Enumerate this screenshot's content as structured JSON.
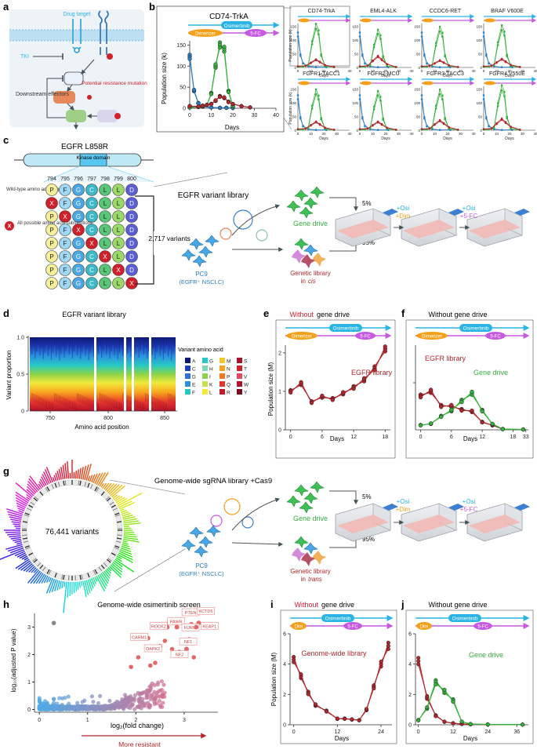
{
  "panel_letters": [
    "a",
    "b",
    "c",
    "d",
    "e",
    "f",
    "g",
    "h",
    "i",
    "j"
  ],
  "colors": {
    "osimertinib": "#2ab4e6",
    "dimerizer": "#f4a11a",
    "fc5": "#c659e0",
    "green": "#34b13c",
    "red": "#b3262c",
    "blue": "#2a7fc4",
    "red_text": "#d0202a",
    "membrane": "#bcdff2",
    "kinase": "#58c6ee"
  },
  "panel_a": {
    "drug_target": "Drug target",
    "tki": "TKI",
    "downstream": "Downstream effectors",
    "resistance": "Potential resistance mutation"
  },
  "panel_b": {
    "main_title": "CD74-TrkA",
    "osimertinib": "Osimertinib",
    "dimerizer": "Dimerizer",
    "fc": "5-FC",
    "ylabel": "Population size (k)",
    "xlabel": "Days",
    "small_titles": [
      "CD74-TrkA",
      "EML4-ALK",
      "CCDC6-RET",
      "BRAF V600E",
      "FGFR1-TACC1",
      "FGFR2-MCU",
      "FGFR3-TACC3",
      "FGFR4 V550E"
    ],
    "small_ylabel": "Population size (k)",
    "small_xlabel": "Days"
  },
  "panel_c": {
    "protein": "EGFR L858R",
    "kinase": "Kinase domain",
    "positions": [
      "794",
      "795",
      "796",
      "797",
      "798",
      "799",
      "800"
    ],
    "wt_label": "Wild-type amino acid sequence",
    "wt_seq": [
      "P",
      "F",
      "G",
      "C",
      "L",
      "L",
      "D"
    ],
    "substitution_label": "All possible amino acid substitutions",
    "sub_marker": "X",
    "count": "2,717 variants",
    "library": "EGFR variant library",
    "cells": "PC9",
    "cells_sub": "(EGFR⁺ NSCLC)",
    "gene_drive": "Gene drive",
    "genetic_library": "Genetic library",
    "in": "in",
    "cis": "cis",
    "pct_top": "5%",
    "pct_bottom": "95%",
    "add1a": "+Osi",
    "add1b": "+Dim",
    "add2a": "+Osi",
    "add2b": "+5-FC"
  },
  "panel_d": {
    "title": "EGFR variant library",
    "ylabel": "Variant proportion",
    "xlabel": "Amino acid position",
    "legend_title": "Variant amino acid",
    "amino_acids": [
      "A",
      "C",
      "D",
      "E",
      "F",
      "G",
      "H",
      "I",
      "K",
      "L",
      "M",
      "N",
      "P",
      "Q",
      "R",
      "S",
      "T",
      "V",
      "W",
      "Y"
    ],
    "xticks": [
      "750",
      "800",
      "850"
    ],
    "yticks": [
      "0",
      "0.5",
      "1.0"
    ]
  },
  "panel_e": {
    "title_red": "Without",
    "title_rest": "gene drive",
    "osimertinib": "Osimertinib",
    "dimerizer": "Dimerizer",
    "fc": "5-FC",
    "ylabel": "Population size (M)",
    "xlabel": "Days",
    "series_label": "EGFR library",
    "xticks": [
      "0",
      "6",
      "12",
      "18"
    ],
    "yticks": [
      "0",
      "1",
      "2"
    ]
  },
  "panel_f": {
    "title": "Without gene drive",
    "osimertinib": "Osimertinib",
    "dimerizer": "Dimerizer",
    "fc": "5-FC",
    "xlabel": "Days",
    "red_label": "EGFR library",
    "green_label": "Gene drive",
    "xticks": [
      "0",
      "6",
      "12",
      "18",
      "33"
    ]
  },
  "panel_g": {
    "count": "76,441 variants",
    "library": "Genome-wide sgRNA library +Cas9",
    "cells": "PC9",
    "cells_sub": "(EGFR⁺ NSCLC)",
    "gene_drive": "Gene drive",
    "genetic_library": "Genetic library",
    "in": "in",
    "trans": "trans",
    "pct_top": "5%",
    "pct_bottom": "95%",
    "add1a": "+Osi",
    "add1b": "+Dim",
    "add2a": "+Osi",
    "add2b": "+5-FC"
  },
  "panel_h": {
    "title": "Genome-wide osimertinib screen",
    "ylabel": "log₁₀(adjusted P value)",
    "xlabel": "log₂(fold change)",
    "arrow_label": "More resistant",
    "genes": [
      "PTEN",
      "KCTD5",
      "PAWR",
      "FURIN",
      "KEAP1",
      "ROCK2",
      "CARM1",
      "NF1",
      "DAPK2",
      "NF2"
    ],
    "xticks": [
      "0",
      "1",
      "2",
      "3"
    ],
    "yticks": [
      "0",
      "1",
      "2",
      "3"
    ]
  },
  "panel_i": {
    "title_red": "Without",
    "title_rest": "gene drive",
    "osimertinib": "Osimertinib",
    "dim": "Dim",
    "fc": "5-FC",
    "ylabel": "Population size (M)",
    "xlabel": "Days",
    "series_label": "Genome-wide library",
    "xticks": [
      "0",
      "12",
      "24"
    ],
    "yticks": [
      "0",
      "2",
      "4",
      "6"
    ]
  },
  "panel_j": {
    "title": "Without gene drive",
    "osimertinib": "Osimertinib",
    "dim": "Dim",
    "fc": "5-FC",
    "xlabel": "Days",
    "green_label": "Gene drive",
    "xticks": [
      "0",
      "12",
      "24",
      "36"
    ],
    "yticks": [
      "0",
      "2",
      "4",
      "6"
    ]
  },
  "chart_data": [
    {
      "id": "b-main",
      "type": "line",
      "title": "CD74-TrkA",
      "xlabel": "Days",
      "ylabel": "Population size (k)",
      "xlim": [
        0,
        40
      ],
      "ylim": [
        0,
        160
      ],
      "xticks": [
        0,
        10,
        20,
        30,
        40
      ],
      "yticks": [
        0,
        50,
        100,
        150
      ],
      "series": [
        {
          "name": "blue",
          "x": [
            0,
            2,
            4,
            6,
            10,
            14,
            17,
            20
          ],
          "values": [
            122,
            42,
            12,
            4,
            2,
            1,
            1,
            1
          ]
        },
        {
          "name": "green",
          "x": [
            0,
            4,
            6,
            8,
            10,
            12,
            14,
            16,
            18,
            20
          ],
          "values": [
            2,
            3,
            5,
            8,
            35,
            100,
            150,
            140,
            40,
            5
          ]
        },
        {
          "name": "red",
          "x": [
            0,
            4,
            6,
            8,
            10,
            12,
            14,
            16,
            18,
            20,
            24,
            28
          ],
          "values": [
            5,
            4,
            6,
            8,
            10,
            18,
            28,
            25,
            15,
            10,
            5,
            2
          ]
        }
      ]
    },
    {
      "id": "b-small",
      "type": "line",
      "xlim": [
        0,
        40
      ],
      "ylim": [
        0,
        160
      ],
      "panels": [
        {
          "title": "CD74-TrkA",
          "green_peak": 150,
          "red_peak": 28
        },
        {
          "title": "EML4-ALK",
          "green_peak": 130,
          "red_peak": 40
        },
        {
          "title": "CCDC6-RET",
          "green_peak": 140,
          "red_peak": 25
        },
        {
          "title": "BRAF V600E",
          "green_peak": 145,
          "red_peak": 30
        },
        {
          "title": "FGFR1-TACC1",
          "green_peak": 140,
          "red_peak": 30
        },
        {
          "title": "FGFR2-MCU",
          "green_peak": 135,
          "red_peak": 30
        },
        {
          "title": "FGFR3-TACC3",
          "green_peak": 140,
          "red_peak": 35
        },
        {
          "title": "FGFR4 V550E",
          "green_peak": 155,
          "red_peak": 40
        }
      ]
    },
    {
      "id": "e",
      "type": "line",
      "xlabel": "Days",
      "ylabel": "Population size (M)",
      "xlim": [
        -1,
        19
      ],
      "ylim": [
        0,
        2.2
      ],
      "series": [
        {
          "name": "EGFR library",
          "x": [
            0,
            2,
            4,
            6,
            8,
            10,
            12,
            14,
            16,
            18
          ],
          "values": [
            1.0,
            1.2,
            0.72,
            0.86,
            0.8,
            0.95,
            1.1,
            1.3,
            1.6,
            2.1
          ]
        }
      ]
    },
    {
      "id": "f",
      "type": "line",
      "xlabel": "Days",
      "xlim": [
        -1,
        21
      ],
      "ylim": [
        0,
        2.2
      ],
      "series": [
        {
          "name": "EGFR library",
          "x": [
            0,
            2,
            4,
            6,
            8,
            10,
            12,
            14,
            16
          ],
          "values": [
            0.88,
            1.0,
            0.62,
            0.62,
            0.52,
            0.48,
            0.2,
            0.12,
            0.02
          ]
        },
        {
          "name": "Gene drive",
          "x": [
            0,
            2,
            4,
            6,
            8,
            10,
            12,
            14,
            16,
            20
          ],
          "values": [
            0.12,
            0.16,
            0.35,
            0.5,
            0.75,
            0.95,
            0.5,
            0.15,
            0.02,
            0.01
          ]
        }
      ]
    },
    {
      "id": "h",
      "type": "scatter",
      "title": "Genome-wide osimertinib screen",
      "xlabel": "log₂(fold change)",
      "ylabel": "log₁₀(adjusted P value)",
      "xlim": [
        -0.1,
        3.7
      ],
      "ylim": [
        -0.1,
        3.5
      ],
      "labeled_points": [
        {
          "gene": "PTEN",
          "x": 3.15,
          "y": 3.1
        },
        {
          "gene": "KCTD5",
          "x": 3.3,
          "y": 3.15
        },
        {
          "gene": "PAWR",
          "x": 2.85,
          "y": 3.0
        },
        {
          "gene": "FURIN",
          "x": 3.05,
          "y": 2.95
        },
        {
          "gene": "KEAP1",
          "x": 3.25,
          "y": 3.0
        },
        {
          "gene": "ROCK2",
          "x": 2.65,
          "y": 3.0
        },
        {
          "gene": "CARM1",
          "x": 2.25,
          "y": 2.6
        },
        {
          "gene": "NF1",
          "x": 3.1,
          "y": 2.55
        },
        {
          "gene": "DAPK2",
          "x": 2.5,
          "y": 2.3
        },
        {
          "gene": "NF2",
          "x": 3.05,
          "y": 2.2
        }
      ]
    },
    {
      "id": "i",
      "type": "line",
      "xlabel": "Days",
      "ylabel": "Population size (M)",
      "xlim": [
        -1,
        27
      ],
      "ylim": [
        0,
        6
      ],
      "series": [
        {
          "name": "Genome-wide library",
          "x": [
            0,
            2,
            4,
            6,
            9,
            12,
            14,
            16,
            18,
            20,
            22,
            24,
            26
          ],
          "values": [
            4.3,
            3.2,
            2.1,
            1.3,
            0.9,
            0.4,
            0.4,
            0.35,
            0.3,
            1.0,
            2.5,
            4.0,
            5.2
          ]
        }
      ]
    },
    {
      "id": "j",
      "type": "line",
      "xlabel": "Days",
      "xlim": [
        -1,
        38
      ],
      "ylim": [
        0,
        6
      ],
      "series": [
        {
          "name": "library",
          "x": [
            0,
            3,
            6,
            9,
            12,
            15,
            18,
            24,
            36
          ],
          "values": [
            4.2,
            1.8,
            0.6,
            0.2,
            0.1,
            0.05,
            0.03,
            0.02,
            0.01
          ]
        },
        {
          "name": "Gene drive",
          "x": [
            0,
            3,
            6,
            9,
            12,
            15,
            18,
            24,
            36
          ],
          "values": [
            0.3,
            1.1,
            2.8,
            2.2,
            1.6,
            0.2,
            0.05,
            0.02,
            0.01
          ]
        }
      ]
    }
  ]
}
